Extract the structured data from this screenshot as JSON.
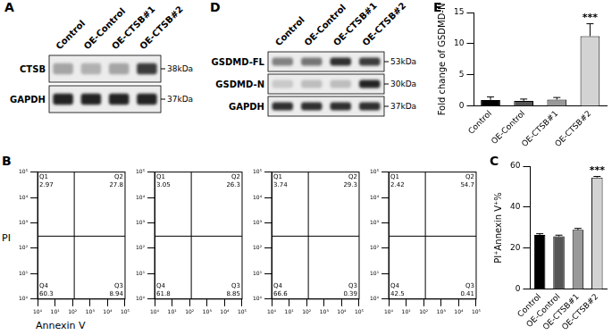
{
  "blots": [
    {
      "panel": "A",
      "lanes": [
        "Control",
        "OE-Control",
        "OE-CTSB#1",
        "OE-CTSB#2"
      ],
      "rows": [
        {
          "name": "CTSB",
          "kda": "38kDa",
          "intensity": [
            0.3,
            0.25,
            0.3,
            0.75
          ]
        },
        {
          "name": "GAPDH",
          "kda": "37kDa",
          "intensity": [
            0.85,
            0.85,
            0.85,
            0.85
          ]
        }
      ]
    },
    {
      "panel": "D",
      "lanes": [
        "Control",
        "OE-Control",
        "OE-CTSB#1",
        "OE-CTSB#2"
      ],
      "rows": [
        {
          "name": "GSDMD-FL",
          "kda": "53kDa",
          "intensity": [
            0.45,
            0.5,
            0.8,
            0.75
          ]
        },
        {
          "name": "GSDMD-N",
          "kda": "30kDa",
          "intensity": [
            0.15,
            0.2,
            0.2,
            0.85
          ]
        },
        {
          "name": "GAPDH",
          "kda": "37kDa",
          "intensity": [
            0.8,
            0.8,
            0.8,
            0.8
          ]
        }
      ]
    }
  ],
  "flow_panel": {
    "panel": "B",
    "x_label": "Annexin V",
    "y_label": "PI"
  },
  "chart_data": [
    {
      "panel": "E",
      "type": "bar",
      "categories": [
        "Control",
        "OE-Control",
        "OE-CTSB#1",
        "OE-CTSB#2"
      ],
      "values": [
        1,
        0.85,
        1.05,
        11.2
      ],
      "errors": [
        0.5,
        0.3,
        0.35,
        2.0
      ],
      "colors": [
        "#000000",
        "#555555",
        "#999999",
        "#d3d3d3"
      ],
      "y_label": "Fold change of GSDMD-N",
      "ylim": [
        0,
        15
      ],
      "yticks": [
        0,
        5,
        10,
        15
      ],
      "grid": false,
      "annotations": [
        {
          "text": "***",
          "category": "OE-CTSB#2"
        }
      ]
    },
    {
      "panel": "C",
      "type": "bar",
      "categories": [
        "Control",
        "OE-Control",
        "OE-CTSB#1",
        "OE-CTSB#2"
      ],
      "values": [
        26.5,
        25.8,
        29,
        54.5
      ],
      "errors": [
        0.6,
        0.6,
        0.7,
        0.5
      ],
      "colors": [
        "#000000",
        "#555555",
        "#999999",
        "#d3d3d3"
      ],
      "y_label": "PI⁺Annexin V⁺%",
      "ylim": [
        0,
        60
      ],
      "yticks": [
        0,
        20,
        40,
        60
      ],
      "grid": false,
      "annotations": [
        {
          "text": "***",
          "category": "OE-CTSB#2"
        }
      ]
    },
    {
      "type": "quadrant",
      "log": true,
      "xlim": [
        1,
        100000
      ],
      "ylim": [
        1,
        100000
      ],
      "xticks": [
        {
          "value": 1,
          "label": "10⁰"
        },
        {
          "value": 10,
          "label": "10¹"
        },
        {
          "value": 100,
          "label": "10²"
        },
        {
          "value": 1000,
          "label": "10³"
        },
        {
          "value": 10000,
          "label": "10⁴"
        },
        {
          "value": 100000,
          "label": "10⁵"
        }
      ],
      "yticks": [
        {
          "value": 1,
          "label": "10⁰"
        },
        {
          "value": 10,
          "label": "10¹"
        },
        {
          "value": 100,
          "label": "10²"
        },
        {
          "value": 1000,
          "label": "10³"
        },
        {
          "value": 10000,
          "label": "10⁴"
        },
        {
          "value": 100000,
          "label": "10⁵"
        }
      ],
      "gate": {
        "x": 125,
        "y": 300
      },
      "quadrants": [
        {
          "name": "Q1",
          "value": 2.97
        },
        {
          "name": "Q2",
          "value": 27.8
        },
        {
          "name": "Q3",
          "value": 8.94
        },
        {
          "name": "Q4",
          "value": 60.3
        }
      ]
    },
    {
      "type": "quadrant",
      "log": true,
      "xlim": [
        1,
        100000
      ],
      "ylim": [
        1,
        100000
      ],
      "xticks": [
        {
          "value": 1,
          "label": "10⁰"
        },
        {
          "value": 10,
          "label": "10¹"
        },
        {
          "value": 100,
          "label": "10²"
        },
        {
          "value": 1000,
          "label": "10³"
        },
        {
          "value": 10000,
          "label": "10⁴"
        },
        {
          "value": 100000,
          "label": "10⁵"
        }
      ],
      "yticks": [
        {
          "value": 1,
          "label": "10⁰"
        },
        {
          "value": 10,
          "label": "10¹"
        },
        {
          "value": 100,
          "label": "10²"
        },
        {
          "value": 1000,
          "label": "10³"
        },
        {
          "value": 10000,
          "label": "10⁴"
        },
        {
          "value": 100000,
          "label": "10⁵"
        }
      ],
      "gate": {
        "x": 125,
        "y": 300
      },
      "quadrants": [
        {
          "name": "Q1",
          "value": 3.05
        },
        {
          "name": "Q2",
          "value": 26.3
        },
        {
          "name": "Q3",
          "value": 8.85
        },
        {
          "name": "Q4",
          "value": 61.8
        }
      ]
    },
    {
      "type": "quadrant",
      "log": true,
      "xlim": [
        1,
        100000
      ],
      "ylim": [
        1,
        100000
      ],
      "xticks": [
        {
          "value": 1,
          "label": "10⁰"
        },
        {
          "value": 10,
          "label": "10¹"
        },
        {
          "value": 100,
          "label": "10²"
        },
        {
          "value": 1000,
          "label": "10³"
        },
        {
          "value": 10000,
          "label": "10⁴"
        },
        {
          "value": 100000,
          "label": "10⁵"
        }
      ],
      "yticks": [
        {
          "value": 1,
          "label": "10⁰"
        },
        {
          "value": 10,
          "label": "10¹"
        },
        {
          "value": 100,
          "label": "10²"
        },
        {
          "value": 1000,
          "label": "10³"
        },
        {
          "value": 10000,
          "label": "10⁴"
        },
        {
          "value": 100000,
          "label": "10⁵"
        }
      ],
      "gate": {
        "x": 125,
        "y": 300
      },
      "quadrants": [
        {
          "name": "Q1",
          "value": 3.74
        },
        {
          "name": "Q2",
          "value": 29.3
        },
        {
          "name": "Q3",
          "value": 0.39
        },
        {
          "name": "Q4",
          "value": 66.6
        }
      ]
    },
    {
      "type": "quadrant",
      "log": true,
      "xlim": [
        1,
        100000
      ],
      "ylim": [
        1,
        100000
      ],
      "xticks": [
        {
          "value": 1,
          "label": "10⁰"
        },
        {
          "value": 10,
          "label": "10¹"
        },
        {
          "value": 100,
          "label": "10²"
        },
        {
          "value": 1000,
          "label": "10³"
        },
        {
          "value": 10000,
          "label": "10⁴"
        },
        {
          "value": 100000,
          "label": "10⁵"
        }
      ],
      "yticks": [
        {
          "value": 1,
          "label": "10⁰"
        },
        {
          "value": 10,
          "label": "10¹"
        },
        {
          "value": 100,
          "label": "10²"
        },
        {
          "value": 1000,
          "label": "10³"
        },
        {
          "value": 10000,
          "label": "10⁴"
        },
        {
          "value": 100000,
          "label": "10⁵"
        }
      ],
      "gate": {
        "x": 125,
        "y": 300
      },
      "quadrants": [
        {
          "name": "Q1",
          "value": 2.42
        },
        {
          "name": "Q2",
          "value": 54.7
        },
        {
          "name": "Q3",
          "value": 0.41
        },
        {
          "name": "Q4",
          "value": 42.5
        }
      ]
    }
  ]
}
